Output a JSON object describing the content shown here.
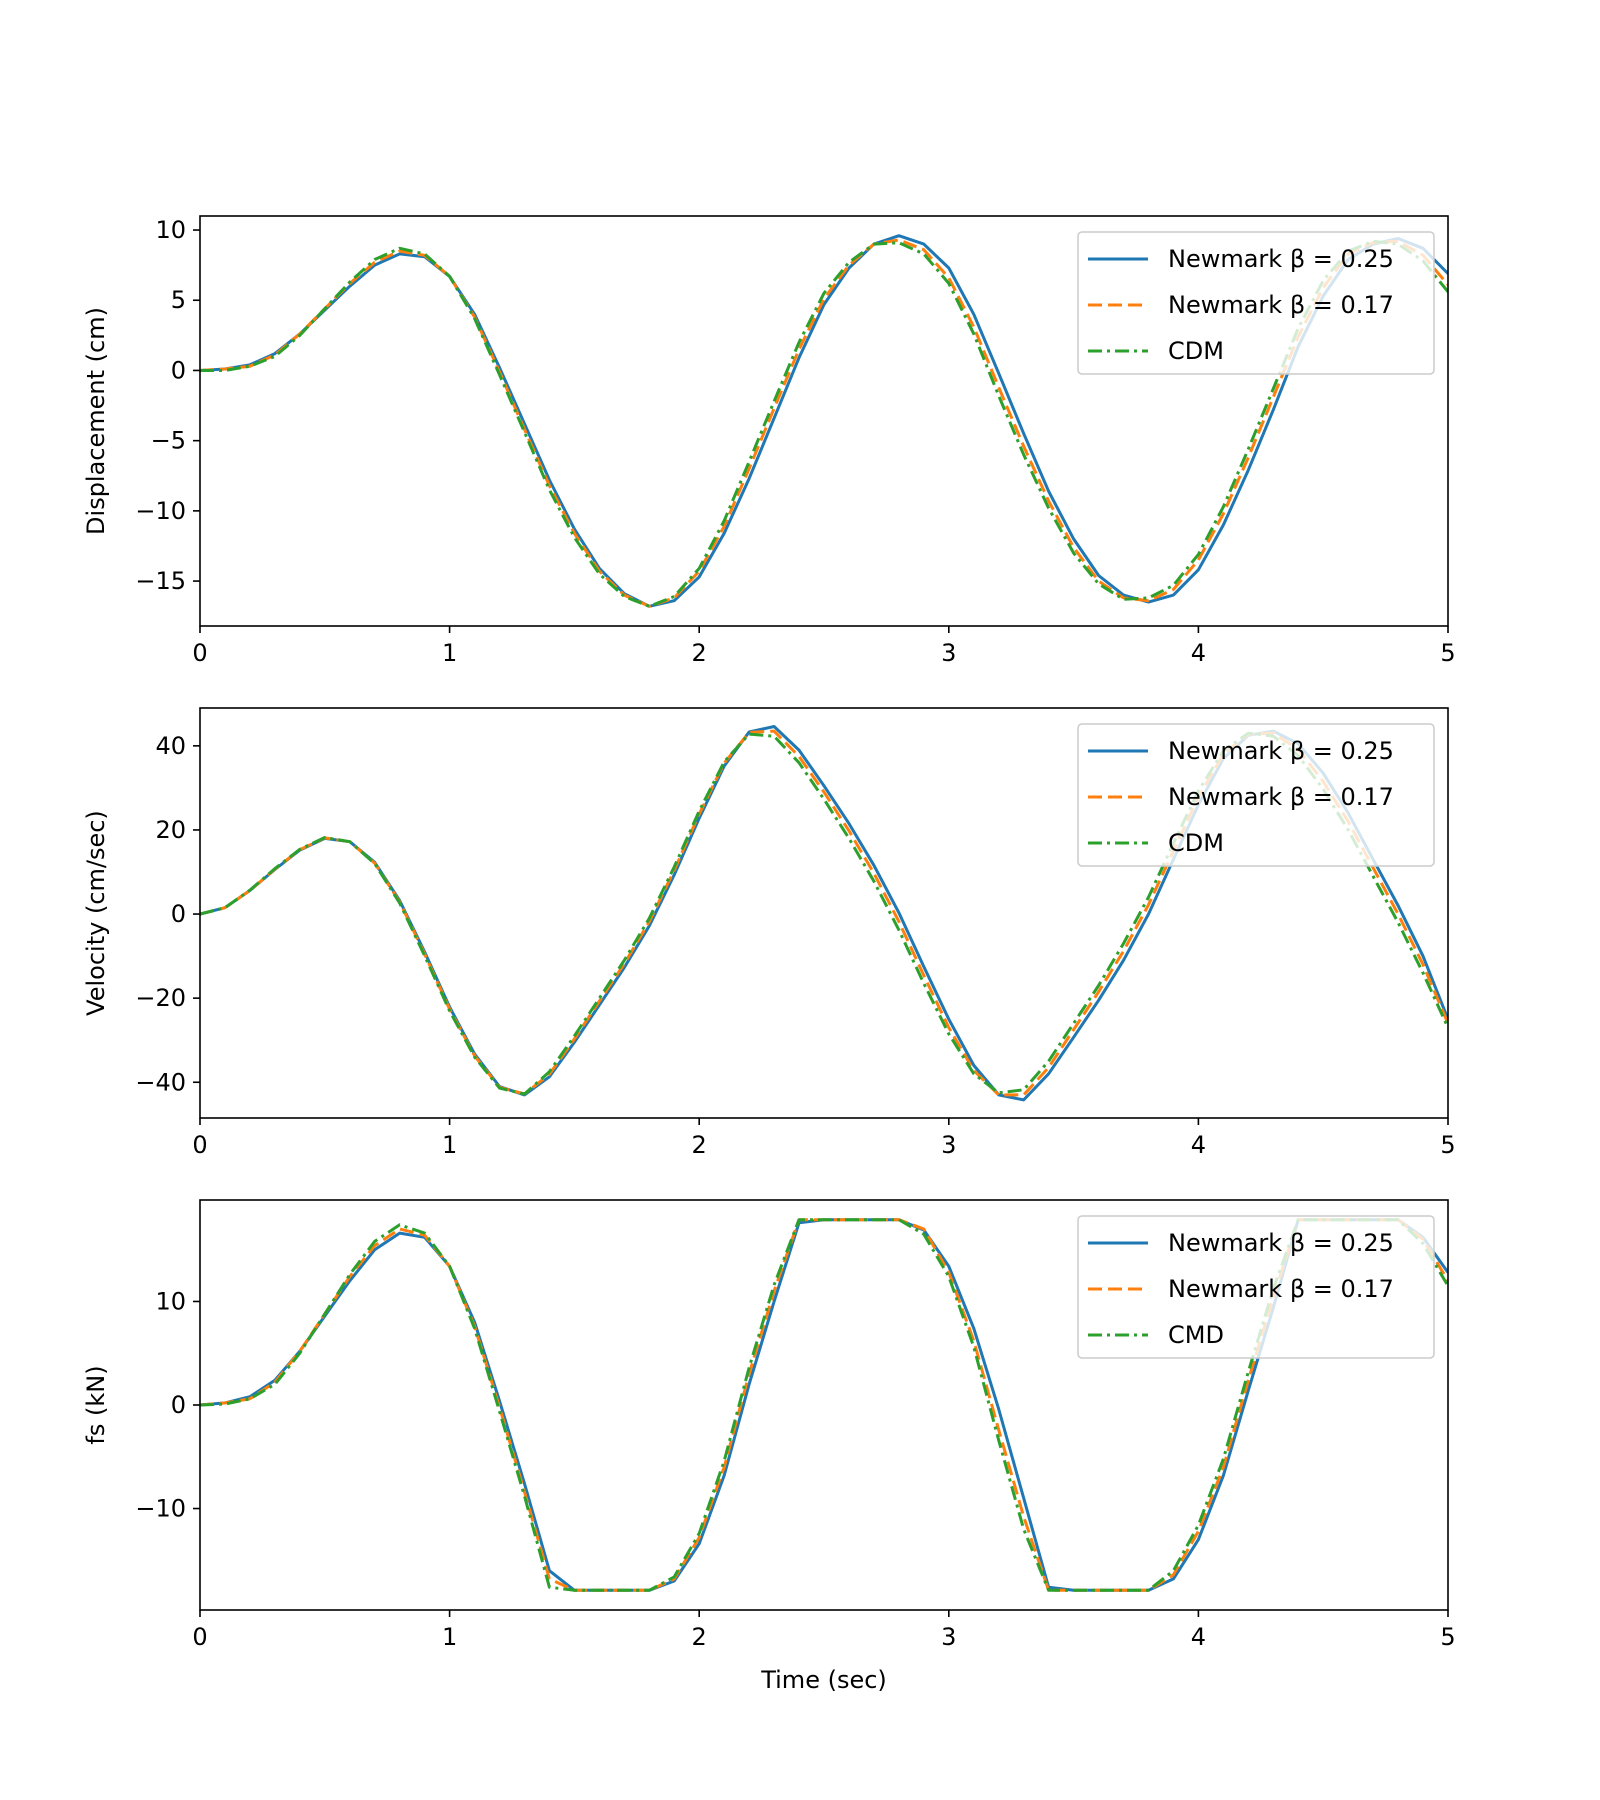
{
  "colors": {
    "newmark_025": "#1f77b4",
    "newmark_017": "#ff7f0e",
    "cdm": "#2ca02c"
  },
  "chart_data": [
    {
      "type": "line",
      "xlabel": "",
      "ylabel": "Displacement (cm)",
      "xlim": [
        0,
        5
      ],
      "ylim": [
        -18.2,
        11
      ],
      "xticks": [
        0,
        1,
        2,
        3,
        4,
        5
      ],
      "yticks": [
        10,
        5,
        0,
        -5,
        -10,
        -15
      ],
      "ytick_labels": [
        "10",
        "5",
        "0",
        "−5",
        "−10",
        "−15"
      ],
      "legend_position": "top-right",
      "x": [
        0,
        0.1,
        0.2,
        0.3,
        0.4,
        0.5,
        0.6,
        0.7,
        0.8,
        0.9,
        1.0,
        1.1,
        1.2,
        1.3,
        1.4,
        1.5,
        1.6,
        1.7,
        1.8,
        1.9,
        2.0,
        2.1,
        2.2,
        2.3,
        2.4,
        2.5,
        2.6,
        2.7,
        2.8,
        2.9,
        3.0,
        3.1,
        3.2,
        3.3,
        3.4,
        3.5,
        3.6,
        3.7,
        3.8,
        3.9,
        4.0,
        4.1,
        4.2,
        4.3,
        4.4,
        4.5,
        4.6,
        4.7,
        4.8,
        4.9,
        5.0
      ],
      "series": [
        {
          "name": "Newmark β = 0.25",
          "style": "solid",
          "color_key": "newmark_025",
          "values": [
            0,
            0.1,
            0.4,
            1.2,
            2.6,
            4.3,
            6.0,
            7.5,
            8.3,
            8.1,
            6.7,
            4.0,
            0.2,
            -3.8,
            -7.8,
            -11.3,
            -14.1,
            -15.9,
            -16.8,
            -16.4,
            -14.7,
            -11.6,
            -7.7,
            -3.4,
            0.9,
            4.7,
            7.3,
            9.0,
            9.6,
            9.0,
            7.3,
            4.0,
            -0.2,
            -4.5,
            -8.6,
            -12.0,
            -14.6,
            -16.0,
            -16.5,
            -16.0,
            -14.2,
            -11.0,
            -7.1,
            -2.8,
            1.7,
            5.3,
            7.9,
            9.0,
            9.4,
            8.7,
            6.9
          ]
        },
        {
          "name": "Newmark β = 0.17",
          "style": "dashed",
          "color_key": "newmark_017",
          "values": [
            0,
            0.1,
            0.3,
            1.1,
            2.6,
            4.4,
            6.2,
            7.7,
            8.5,
            8.2,
            6.7,
            3.8,
            -0.1,
            -4.2,
            -8.2,
            -11.6,
            -14.3,
            -16.0,
            -16.8,
            -16.2,
            -14.3,
            -11.1,
            -7.0,
            -2.7,
            1.5,
            5.1,
            7.5,
            9.0,
            9.3,
            8.6,
            6.6,
            3.1,
            -1.2,
            -5.4,
            -9.3,
            -12.6,
            -15.0,
            -16.2,
            -16.4,
            -15.6,
            -13.5,
            -10.2,
            -6.2,
            -1.9,
            2.4,
            5.9,
            8.3,
            9.1,
            9.2,
            8.2,
            6.1
          ]
        },
        {
          "name": "CDM",
          "style": "dashdot",
          "color_key": "cdm",
          "values": [
            0,
            0,
            0.3,
            1.0,
            2.5,
            4.4,
            6.3,
            7.9,
            8.7,
            8.3,
            6.7,
            3.7,
            -0.3,
            -4.4,
            -8.5,
            -11.9,
            -14.5,
            -16.1,
            -16.8,
            -16.1,
            -14.1,
            -10.7,
            -6.5,
            -2.2,
            2.0,
            5.5,
            7.7,
            9.0,
            9.1,
            8.3,
            6.2,
            2.6,
            -1.8,
            -6.0,
            -9.8,
            -13.0,
            -15.2,
            -16.3,
            -16.2,
            -15.3,
            -13.1,
            -9.7,
            -5.6,
            -1.3,
            3.0,
            6.4,
            8.5,
            9.2,
            9.0,
            7.8,
            5.6
          ]
        }
      ]
    },
    {
      "type": "line",
      "xlabel": "",
      "ylabel": "Velocity (cm/sec)",
      "xlim": [
        0,
        5
      ],
      "ylim": [
        -48.5,
        49
      ],
      "xticks": [
        0,
        1,
        2,
        3,
        4,
        5
      ],
      "yticks": [
        40,
        20,
        0,
        -20,
        -40
      ],
      "ytick_labels": [
        "40",
        "20",
        "0",
        "−20",
        "−40"
      ],
      "legend_position": "top-right",
      "x": [
        0,
        0.1,
        0.2,
        0.3,
        0.4,
        0.5,
        0.6,
        0.7,
        0.8,
        0.9,
        1.0,
        1.1,
        1.2,
        1.3,
        1.4,
        1.5,
        1.6,
        1.7,
        1.8,
        1.9,
        2.0,
        2.1,
        2.2,
        2.3,
        2.4,
        2.5,
        2.6,
        2.7,
        2.8,
        2.9,
        3.0,
        3.1,
        3.2,
        3.3,
        3.4,
        3.5,
        3.6,
        3.7,
        3.8,
        3.9,
        4.0,
        4.1,
        4.2,
        4.3,
        4.4,
        4.5,
        4.6,
        4.7,
        4.8,
        4.9,
        5.0
      ],
      "series": [
        {
          "name": "Newmark β = 0.25",
          "style": "solid",
          "color_key": "newmark_025",
          "values": [
            0,
            1.5,
            5.6,
            10.6,
            15.2,
            18.0,
            17.2,
            12.3,
            3.2,
            -9.0,
            -22.1,
            -33.3,
            -41.0,
            -43.0,
            -38.7,
            -30.5,
            -21.6,
            -12.7,
            -2.8,
            9.3,
            22.8,
            35.2,
            43.3,
            44.6,
            39.0,
            30.5,
            21.5,
            11.6,
            0.3,
            -12.5,
            -25.0,
            -36.0,
            -43.0,
            -44.2,
            -38.0,
            -29.3,
            -20.5,
            -11.0,
            0.0,
            13.0,
            26.0,
            37.0,
            42.5,
            43.5,
            40.5,
            33.5,
            24.0,
            13.0,
            2.0,
            -10.0,
            -25.0
          ]
        },
        {
          "name": "Newmark β = 0.17",
          "style": "dashed",
          "color_key": "newmark_017",
          "values": [
            0,
            1.5,
            5.6,
            10.7,
            15.3,
            18.1,
            17.2,
            12.1,
            2.9,
            -9.5,
            -22.6,
            -33.7,
            -41.2,
            -42.8,
            -38.1,
            -29.7,
            -20.7,
            -11.8,
            -1.8,
            10.4,
            23.8,
            35.9,
            43.2,
            43.5,
            37.5,
            29.0,
            19.8,
            9.7,
            -1.8,
            -14.6,
            -27.0,
            -37.2,
            -43.0,
            -43.0,
            -36.5,
            -27.5,
            -18.5,
            -8.8,
            2.2,
            15.0,
            27.8,
            38.0,
            42.8,
            43.0,
            39.2,
            31.5,
            22.0,
            11.0,
            0.0,
            -12.0,
            -26.0
          ]
        },
        {
          "name": "CDM",
          "style": "dashdot",
          "color_key": "cdm",
          "values": [
            0,
            1.5,
            5.7,
            10.8,
            15.4,
            18.2,
            17.2,
            12.0,
            2.6,
            -9.9,
            -23.0,
            -34.0,
            -41.4,
            -42.8,
            -37.5,
            -29.0,
            -20.0,
            -11.0,
            -1.0,
            11.2,
            24.5,
            36.2,
            42.8,
            42.3,
            36.0,
            27.3,
            18.0,
            7.8,
            -3.8,
            -16.5,
            -28.5,
            -38.0,
            -42.5,
            -41.8,
            -35.0,
            -26.0,
            -17.0,
            -7.0,
            4.0,
            16.8,
            29.3,
            38.8,
            43.0,
            42.3,
            37.7,
            29.7,
            20.0,
            9.0,
            -2.0,
            -14.0,
            -27.0
          ]
        }
      ]
    },
    {
      "type": "line",
      "xlabel": "Time (sec)",
      "ylabel": "fs (kN)",
      "xlim": [
        0,
        5
      ],
      "ylim": [
        -19.8,
        19.8
      ],
      "xticks": [
        0,
        1,
        2,
        3,
        4,
        5
      ],
      "yticks": [
        10,
        0,
        -10
      ],
      "ytick_labels": [
        "10",
        "0",
        "−10"
      ],
      "legend_position": "top-right",
      "x": [
        0,
        0.1,
        0.2,
        0.3,
        0.4,
        0.5,
        0.6,
        0.7,
        0.8,
        0.9,
        1.0,
        1.1,
        1.2,
        1.3,
        1.4,
        1.5,
        1.6,
        1.7,
        1.8,
        1.9,
        2.0,
        2.1,
        2.2,
        2.3,
        2.4,
        2.5,
        2.6,
        2.7,
        2.8,
        2.9,
        3.0,
        3.1,
        3.2,
        3.3,
        3.4,
        3.5,
        3.6,
        3.7,
        3.8,
        3.9,
        4.0,
        4.1,
        4.2,
        4.3,
        4.4,
        4.5,
        4.6,
        4.7,
        4.8,
        4.9,
        5.0
      ],
      "series": [
        {
          "name": "Newmark β = 0.25",
          "style": "solid",
          "color_key": "newmark_025",
          "values": [
            0,
            0.2,
            0.8,
            2.4,
            5.2,
            8.6,
            12.0,
            15.0,
            16.6,
            16.2,
            13.4,
            8.0,
            0.4,
            -7.6,
            -16.0,
            -17.9,
            -17.9,
            -17.9,
            -17.9,
            -17.0,
            -13.4,
            -6.8,
            2.0,
            10.0,
            17.6,
            17.9,
            17.9,
            17.9,
            17.9,
            16.9,
            13.4,
            7.4,
            -0.4,
            -9.0,
            -17.6,
            -17.9,
            -17.9,
            -17.9,
            -17.9,
            -16.8,
            -13.0,
            -6.8,
            1.4,
            9.4,
            17.9,
            17.9,
            17.9,
            17.9,
            17.9,
            16.2,
            12.8
          ]
        },
        {
          "name": "Newmark β = 0.17",
          "style": "dashed",
          "color_key": "newmark_017",
          "values": [
            0,
            0.2,
            0.6,
            2.2,
            5.2,
            8.8,
            12.4,
            15.4,
            17.0,
            16.4,
            13.4,
            7.6,
            -0.2,
            -8.4,
            -16.8,
            -17.9,
            -17.9,
            -17.9,
            -17.9,
            -16.8,
            -12.8,
            -6.0,
            3.0,
            11.0,
            17.9,
            17.9,
            17.9,
            17.9,
            17.9,
            17.0,
            12.8,
            6.2,
            -2.4,
            -10.8,
            -17.9,
            -17.9,
            -17.9,
            -17.9,
            -17.9,
            -16.4,
            -12.2,
            -6.0,
            2.4,
            10.4,
            17.9,
            17.9,
            17.9,
            17.9,
            17.9,
            16.0,
            12.0
          ]
        },
        {
          "name": "CMD",
          "style": "dashdot",
          "color_key": "cdm",
          "values": [
            0,
            0.1,
            0.6,
            2.0,
            5.0,
            8.8,
            12.6,
            15.8,
            17.4,
            16.6,
            13.4,
            7.4,
            -0.6,
            -8.8,
            -17.6,
            -17.9,
            -17.9,
            -17.9,
            -17.9,
            -16.6,
            -12.4,
            -5.4,
            3.6,
            11.6,
            17.9,
            17.9,
            17.9,
            17.9,
            17.9,
            16.5,
            12.4,
            5.6,
            -3.4,
            -12.0,
            -17.9,
            -17.9,
            -17.9,
            -17.9,
            -17.9,
            -16.0,
            -11.6,
            -5.2,
            3.2,
            11.2,
            17.9,
            17.9,
            17.9,
            17.9,
            17.9,
            15.6,
            11.5
          ]
        }
      ]
    }
  ]
}
